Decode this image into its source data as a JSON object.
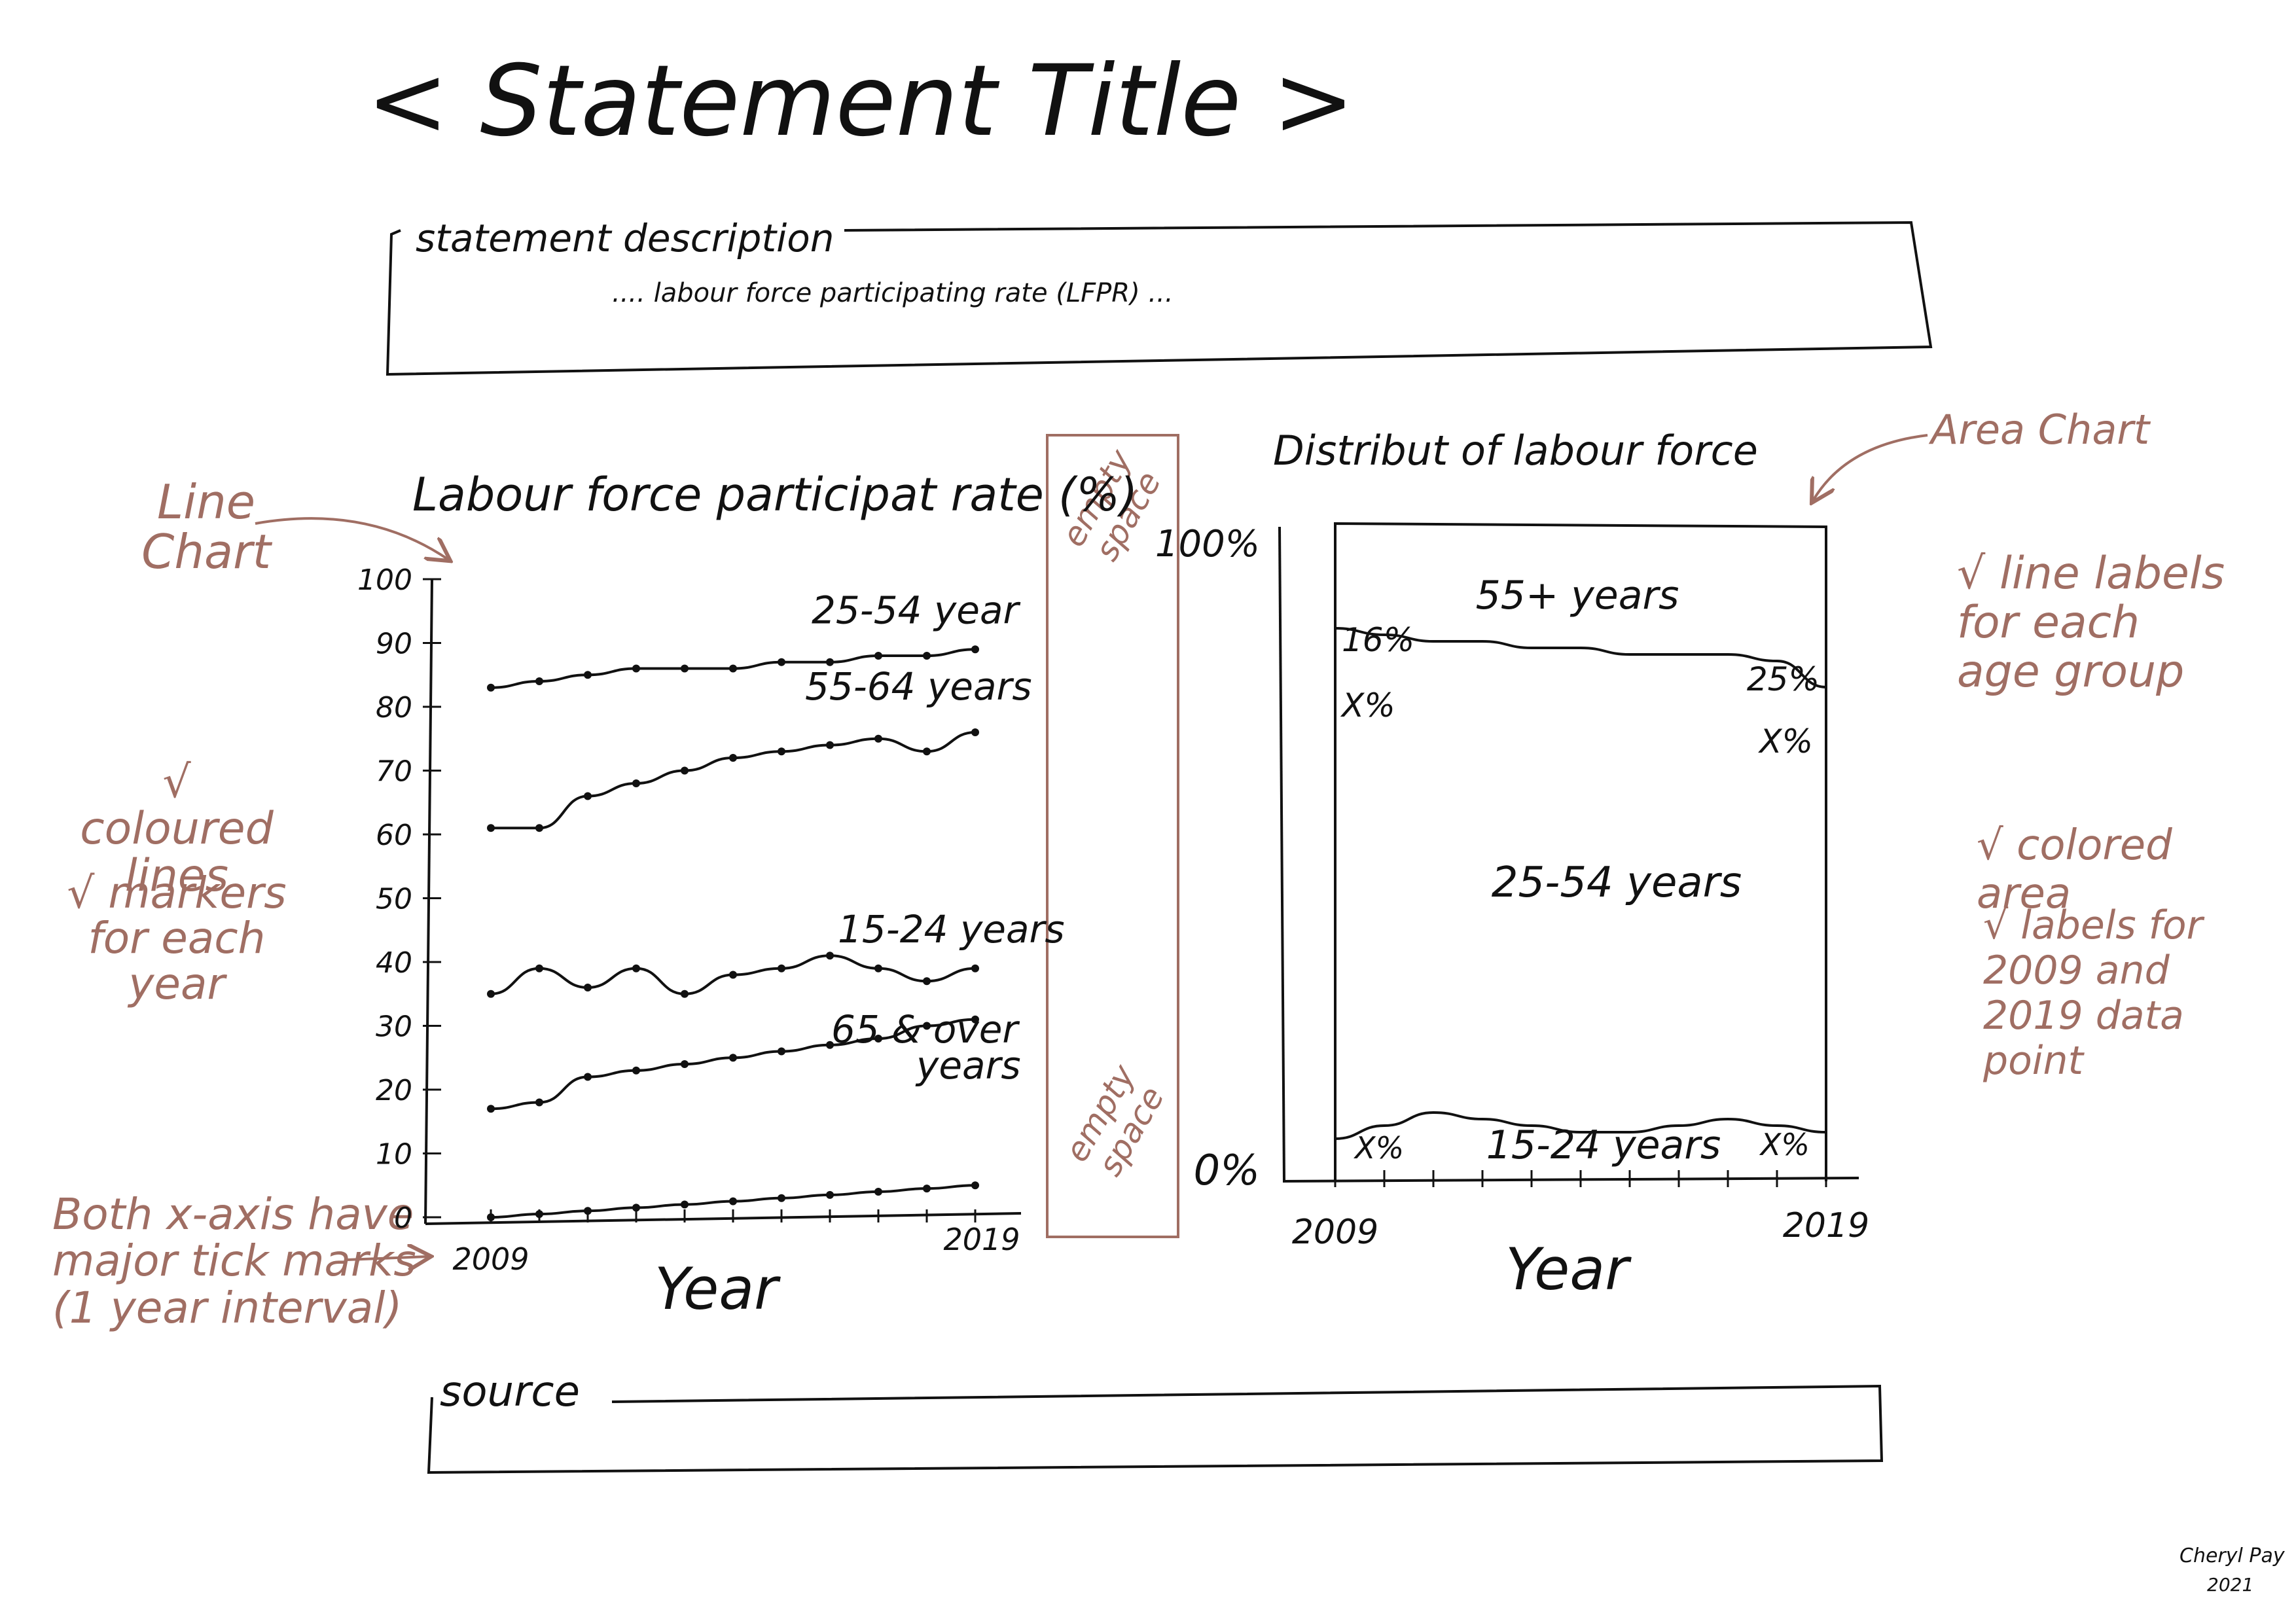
{
  "page": {
    "title": "< Statement Title >",
    "description_label": "statement description",
    "description_text": ".... labour force participating rate (LFPR) ...",
    "source_label": "source",
    "credit_name": "Cheryl Pay",
    "credit_year": "2021"
  },
  "annotations": {
    "line_chart": "Line Chart",
    "area_chart": "Area Chart",
    "coloured_lines": "√ coloured lines",
    "markers": "√ markers for each year",
    "line_labels": "√ line labels for each age group",
    "coloured_area": "√ colored area",
    "labels_2009_2019": "√ labels for 2009 and 2019 data point",
    "both_axis": "Both x-axis have major tick marks (1 year interval)",
    "empty_space_top": "empty space",
    "empty_space_bottom": "empty space"
  },
  "colors": {
    "ink": "#111111",
    "annotation": "#a06e63"
  },
  "chart_data": [
    {
      "type": "line",
      "title": "Labour force participat rate (%)",
      "xlabel": "Year",
      "ylabel": "",
      "ylim": [
        0,
        100
      ],
      "yticks": [
        0,
        10,
        20,
        30,
        40,
        50,
        60,
        70,
        80,
        90,
        100
      ],
      "x": [
        2009,
        2010,
        2011,
        2012,
        2013,
        2014,
        2015,
        2016,
        2017,
        2018,
        2019
      ],
      "xtick_labels": [
        "2009",
        "2019"
      ],
      "series": [
        {
          "name": "25-54 year",
          "values": [
            83,
            84,
            85,
            86,
            86,
            86,
            87,
            87,
            88,
            88,
            89
          ]
        },
        {
          "name": "55-64 years",
          "values": [
            61,
            61,
            66,
            68,
            70,
            72,
            73,
            74,
            75,
            73,
            76
          ]
        },
        {
          "name": "15-24 years",
          "values": [
            35,
            39,
            36,
            39,
            35,
            38,
            39,
            41,
            39,
            37,
            39
          ]
        },
        {
          "name": "65 & over years",
          "values": [
            17,
            18,
            22,
            23,
            24,
            25,
            26,
            27,
            28,
            30,
            31
          ]
        },
        {
          "name": "",
          "values": [
            0,
            0.5,
            1,
            1.5,
            2,
            2.5,
            3,
            3.5,
            4,
            4.5,
            5
          ]
        }
      ]
    },
    {
      "type": "area",
      "title": "Distribut of labour force",
      "xlabel": "Year",
      "ylim": [
        0,
        100
      ],
      "ytick_labels": [
        "0%",
        "100%"
      ],
      "xtick_labels": [
        "2009",
        "2019"
      ],
      "x": [
        2009,
        2010,
        2011,
        2012,
        2013,
        2014,
        2015,
        2016,
        2017,
        2018,
        2019
      ],
      "boundaries": [
        {
          "name": "15-24 / 25-54",
          "values": [
            6,
            8,
            10,
            9,
            8,
            7,
            7,
            8,
            9,
            8,
            7
          ]
        },
        {
          "name": "25-54 / 55+",
          "values": [
            84,
            83,
            82,
            82,
            81,
            81,
            80,
            80,
            80,
            79,
            75
          ]
        }
      ],
      "series_labels": [
        "55+ years",
        "25-54 years",
        "15-24 years"
      ],
      "data_labels": {
        "55+ 2009": "16%",
        "55+ 2019": "25%",
        "25-54 2009": "X%",
        "25-54 2019": "X%",
        "15-24 2009": "X%",
        "15-24 2019": "X%"
      }
    }
  ]
}
